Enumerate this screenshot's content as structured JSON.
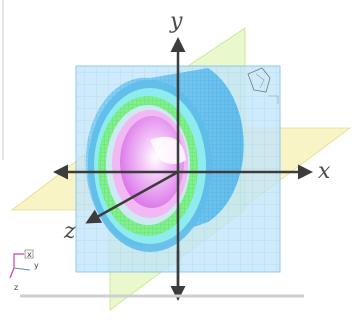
{
  "axes": {
    "x_label": "x",
    "y_label": "y",
    "z_label": "z"
  },
  "mini_axes": {
    "x_label": "x",
    "y_label": "y",
    "z_label": "z"
  },
  "colors": {
    "xy_plane": "#bfe4fa",
    "xz_plane": "#f6efad",
    "yz_plane": "#d9f3a6",
    "cylinder_outer": "#6fc6f0",
    "ring_green": "#7ff08a",
    "ring_cyan": "#93f0ee",
    "inner_magenta": "#e58cf2",
    "axis": "#3c3c3c"
  },
  "icons": {
    "orientation_triad": "axes-triad-icon",
    "corner_widget": "view-cube-icon"
  }
}
